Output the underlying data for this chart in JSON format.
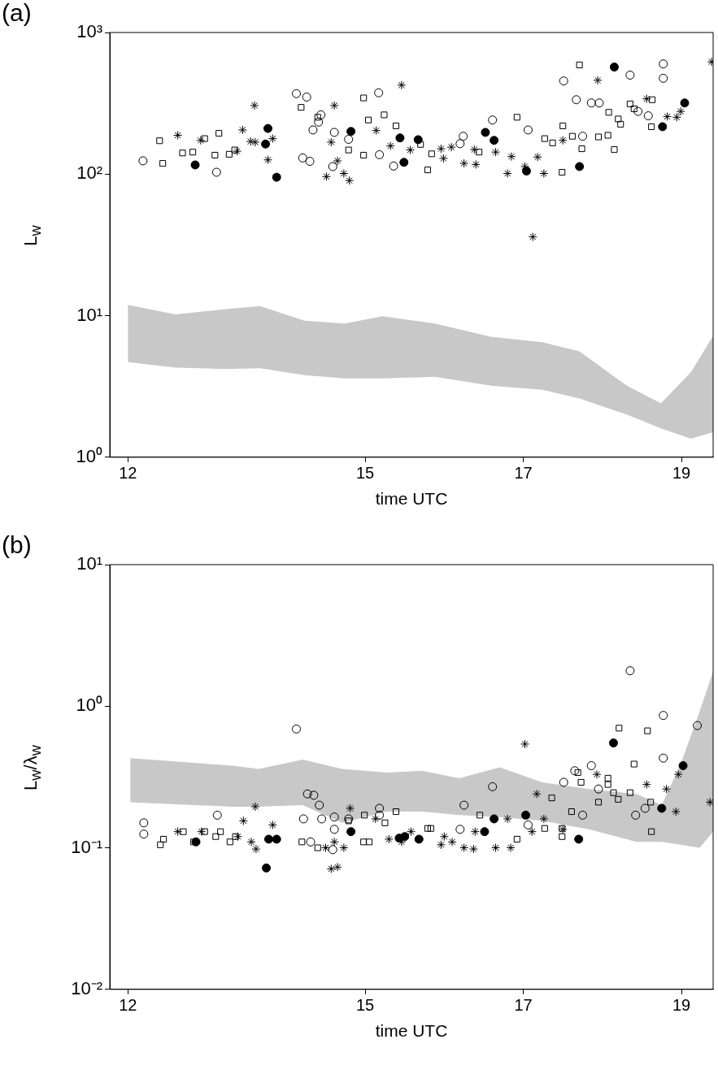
{
  "chart_data": [
    {
      "type": "scatter",
      "title": "(a)",
      "xlabel": "time UTC",
      "ylabel": "L$_{w}$",
      "log": true,
      "grid": false,
      "xlim": [
        11.77,
        19.4
      ],
      "xticks": [
        12,
        15,
        17,
        19
      ],
      "ylim": [
        1,
        1000
      ],
      "yticks": [
        {
          "value": 1,
          "label": "10⁰"
        },
        {
          "value": 10,
          "label": "10¹"
        },
        {
          "value": 100,
          "label": "10²"
        },
        {
          "value": 1000,
          "label": "10³"
        }
      ],
      "series": [
        {
          "type": "area",
          "color": "#c8c8c8",
          "x": [
            12.0,
            12.6,
            13.21,
            13.67,
            14.23,
            14.74,
            15.22,
            15.88,
            16.59,
            17.24,
            17.71,
            18.31,
            18.74,
            19.12,
            19.4
          ],
          "values": [
            null,
            null,
            null,
            null,
            null,
            null,
            null,
            null,
            null,
            null,
            null,
            null,
            null,
            null,
            null
          ],
          "upper": [
            11.9,
            10.2,
            11.1,
            11.7,
            9.2,
            8.8,
            9.9,
            8.8,
            7.1,
            6.5,
            5.6,
            3.2,
            2.4,
            4.0,
            7.2
          ],
          "lower": [
            4.7,
            4.3,
            4.2,
            4.25,
            3.8,
            3.6,
            3.6,
            3.7,
            3.2,
            3.0,
            2.6,
            2.0,
            1.6,
            1.35,
            1.5
          ]
        },
        {
          "marker": "circle-open",
          "color": "#000000",
          "x": [
            12.19,
            13.12,
            14.13,
            14.26,
            14.44,
            14.41,
            14.34,
            14.21,
            14.3,
            14.61,
            14.59,
            14.79,
            15.17,
            15.18,
            15.36,
            16.2,
            16.24,
            16.61,
            17.06,
            17.75,
            17.51,
            17.67,
            17.86,
            17.96,
            18.35,
            18.77,
            18.77,
            18.45,
            18.58
          ],
          "values": [
            124,
            103,
            370,
            350,
            262,
            233,
            205,
            130,
            123,
            197,
            113,
            176,
            375,
            137,
            114,
            164,
            185,
            241,
            205,
            185,
            455,
            335,
            318,
            318,
            500,
            600,
            475,
            277,
            258
          ]
        },
        {
          "marker": "square-open",
          "color": "#000000",
          "x": [
            12.4,
            12.44,
            12.69,
            12.82,
            12.97,
            13.15,
            13.1,
            13.28,
            13.35,
            14.19,
            14.4,
            14.79,
            14.98,
            15.04,
            15.24,
            14.98,
            15.39,
            15.7,
            15.84,
            15.79,
            16.44,
            16.92,
            17.27,
            17.37,
            17.5,
            17.49,
            17.62,
            17.74,
            17.95,
            18.07,
            18.15,
            17.71,
            18.08,
            18.2,
            18.23,
            18.35,
            18.4,
            18.63,
            18.62
          ],
          "values": [
            172,
            119,
            141,
            143,
            178,
            194,
            136,
            138,
            148,
            296,
            252,
            148,
            345,
            241,
            262,
            136,
            219,
            162,
            139,
            107,
            143,
            252,
            178,
            166,
            219,
            103,
            185,
            151,
            183,
            188,
            149,
            590,
            273,
            245,
            225,
            313,
            289,
            335,
            216
          ]
        },
        {
          "marker": "cross",
          "color": "#000000",
          "x": [
            12.63,
            12.92,
            13.6,
            13.45,
            13.55,
            13.61,
            13.83,
            13.38,
            13.77,
            14.61,
            14.57,
            14.65,
            14.51,
            14.73,
            14.8,
            15.14,
            15.46,
            15.32,
            15.57,
            15.96,
            15.99,
            16.09,
            16.25,
            16.4,
            16.38,
            16.65,
            16.85,
            16.8,
            17.02,
            17.18,
            17.26,
            17.5,
            17.94,
            18.56,
            18.82,
            18.94,
            18.99,
            17.12,
            19.38
          ],
          "values": [
            188,
            173,
            305,
            205,
            170,
            168,
            178,
            145,
            126,
            305,
            168,
            124,
            96,
            101,
            90,
            203,
            425,
            158,
            148,
            151,
            129,
            155,
            119,
            117,
            149,
            143,
            133,
            101,
            113,
            132,
            101,
            173,
            460,
            340,
            255,
            252,
            277,
            36,
            620
          ]
        },
        {
          "marker": "circle",
          "color": "#000000",
          "x": [
            12.85,
            13.77,
            13.74,
            13.88,
            14.82,
            15.44,
            15.67,
            15.49,
            16.52,
            16.63,
            17.04,
            17.71,
            18.15,
            18.76,
            19.04
          ],
          "values": [
            116,
            210,
            163,
            95,
            200,
            180,
            175,
            121,
            197,
            173,
            105,
            113,
            570,
            216,
            318
          ]
        }
      ]
    },
    {
      "type": "scatter",
      "title": "(b)",
      "xlabel": "time UTC",
      "ylabel": "L$_{w}$/λ$_{w}$",
      "log": true,
      "grid": false,
      "xlim": [
        11.77,
        19.4
      ],
      "xticks": [
        12,
        15,
        17,
        19
      ],
      "ylim": [
        0.01,
        10
      ],
      "yticks": [
        {
          "value": 0.01,
          "label": "10⁻²"
        },
        {
          "value": 0.1,
          "label": "10⁻¹"
        },
        {
          "value": 1,
          "label": "10⁰"
        },
        {
          "value": 10,
          "label": "10¹"
        }
      ],
      "series": [
        {
          "type": "area",
          "color": "#c8c8c8",
          "x": [
            12.03,
            13.32,
            13.65,
            14.21,
            14.71,
            15.27,
            15.72,
            16.19,
            16.7,
            17.24,
            17.83,
            18.43,
            18.75,
            18.99,
            19.23,
            19.4
          ],
          "values": [
            null,
            null,
            null,
            null,
            null,
            null,
            null,
            null,
            null,
            null,
            null,
            null,
            null,
            null,
            null,
            null
          ],
          "upper": [
            0.43,
            0.38,
            0.36,
            0.42,
            0.36,
            0.34,
            0.35,
            0.31,
            0.37,
            0.29,
            0.26,
            0.24,
            0.2,
            0.39,
            0.92,
            1.76
          ],
          "lower": [
            0.21,
            0.195,
            0.195,
            0.2,
            0.15,
            0.18,
            0.18,
            0.17,
            0.165,
            0.155,
            0.135,
            0.11,
            0.11,
            0.105,
            0.1,
            0.13
          ]
        },
        {
          "marker": "circle-open",
          "color": "#000000",
          "x": [
            12.2,
            12.2,
            13.13,
            14.13,
            14.27,
            14.35,
            14.42,
            14.22,
            14.45,
            14.61,
            14.61,
            14.79,
            14.31,
            14.59,
            15.18,
            15.18,
            16.25,
            16.2,
            16.61,
            17.06,
            17.51,
            17.65,
            17.86,
            17.95,
            17.75,
            18.42,
            18.54,
            18.77,
            18.77,
            19.2,
            18.35
          ],
          "values": [
            0.15,
            0.125,
            0.17,
            0.69,
            0.24,
            0.235,
            0.2,
            0.16,
            0.16,
            0.165,
            0.135,
            0.16,
            0.11,
            0.097,
            0.19,
            0.17,
            0.2,
            0.135,
            0.27,
            0.145,
            0.29,
            0.35,
            0.38,
            0.26,
            0.17,
            0.17,
            0.19,
            0.43,
            0.86,
            0.73,
            1.78
          ]
        },
        {
          "marker": "square-open",
          "color": "#000000",
          "x": [
            12.41,
            12.45,
            12.7,
            12.83,
            12.97,
            13.11,
            13.17,
            13.29,
            13.36,
            14.2,
            14.4,
            14.79,
            14.99,
            14.98,
            15.05,
            15.25,
            15.39,
            15.79,
            15.83,
            16.45,
            16.92,
            17.27,
            17.49,
            17.49,
            17.36,
            17.61,
            17.69,
            17.73,
            17.95,
            18.07,
            18.07,
            18.14,
            18.2,
            18.35,
            18.4,
            18.61,
            18.62,
            18.21,
            18.57
          ],
          "values": [
            0.105,
            0.115,
            0.13,
            0.11,
            0.13,
            0.12,
            0.13,
            0.11,
            0.12,
            0.11,
            0.1,
            0.155,
            0.17,
            0.11,
            0.11,
            0.15,
            0.18,
            0.137,
            0.137,
            0.17,
            0.115,
            0.137,
            0.137,
            0.12,
            0.225,
            0.18,
            0.34,
            0.29,
            0.21,
            0.31,
            0.28,
            0.245,
            0.22,
            0.245,
            0.39,
            0.21,
            0.13,
            0.7,
            0.67
          ]
        },
        {
          "marker": "cross",
          "color": "#000000",
          "x": [
            12.63,
            12.93,
            13.39,
            13.46,
            13.61,
            13.83,
            13.56,
            13.62,
            14.5,
            14.61,
            14.73,
            14.57,
            14.65,
            14.81,
            15.13,
            15.3,
            15.46,
            15.58,
            15.96,
            16.0,
            16.1,
            16.25,
            16.37,
            16.39,
            16.8,
            16.65,
            16.84,
            17.11,
            17.26,
            17.5,
            17.17,
            17.02,
            17.93,
            18.56,
            18.81,
            18.93,
            18.96,
            19.36
          ],
          "values": [
            0.13,
            0.13,
            0.12,
            0.155,
            0.195,
            0.145,
            0.11,
            0.098,
            0.1,
            0.11,
            0.1,
            0.071,
            0.073,
            0.19,
            0.16,
            0.115,
            0.11,
            0.13,
            0.105,
            0.12,
            0.11,
            0.1,
            0.098,
            0.13,
            0.16,
            0.1,
            0.1,
            0.13,
            0.16,
            0.135,
            0.24,
            0.54,
            0.33,
            0.28,
            0.26,
            0.18,
            0.33,
            0.21
          ]
        },
        {
          "marker": "circle",
          "color": "#000000",
          "x": [
            12.86,
            13.75,
            13.78,
            13.88,
            14.82,
            15.43,
            15.5,
            15.68,
            16.51,
            16.63,
            17.03,
            17.7,
            18.14,
            18.75,
            19.02
          ],
          "values": [
            0.11,
            0.072,
            0.115,
            0.115,
            0.13,
            0.117,
            0.12,
            0.115,
            0.13,
            0.16,
            0.17,
            0.115,
            0.55,
            0.19,
            0.38
          ]
        }
      ]
    }
  ]
}
